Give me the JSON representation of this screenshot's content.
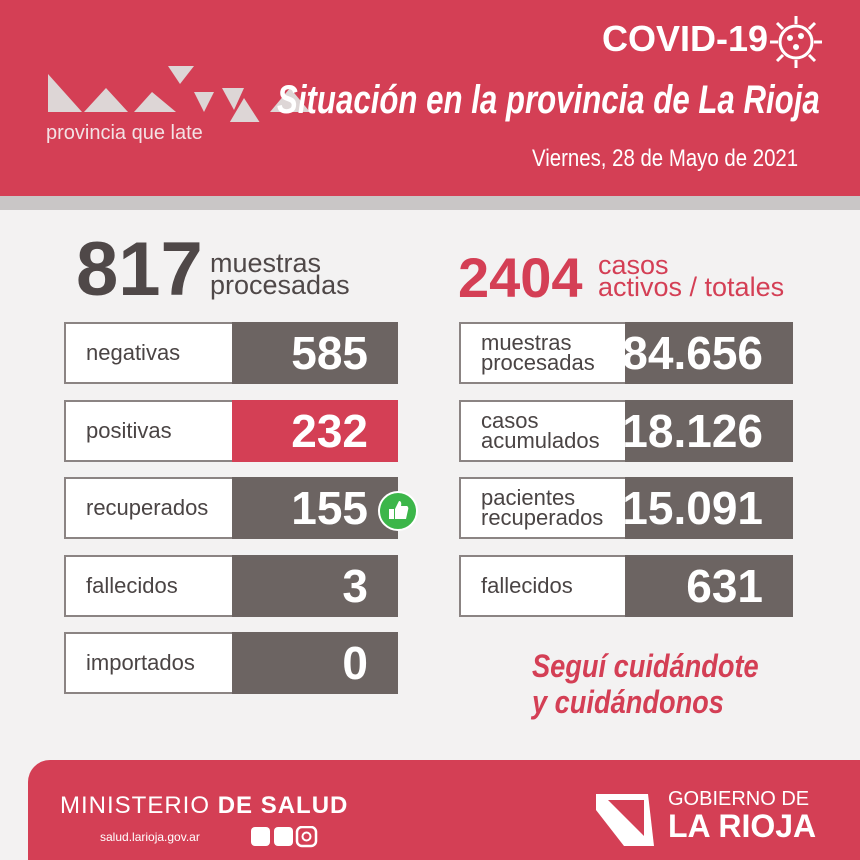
{
  "header": {
    "logo_tagline": "provincia que late",
    "title": "COVID-19",
    "subtitle": "Situación en la provincia de La Rioja",
    "date": "Viernes,  28 de Mayo de 2021"
  },
  "left": {
    "total": "817",
    "label": [
      "muestras",
      "procesadas"
    ],
    "rows": [
      {
        "label": [
          "negativas"
        ],
        "value": "585"
      },
      {
        "label": [
          "positivas"
        ],
        "value": "232",
        "highlight": true
      },
      {
        "label": [
          "recuperados"
        ],
        "value": "155",
        "icon": true
      },
      {
        "label": [
          "fallecidos"
        ],
        "value": "3"
      },
      {
        "label": [
          "importados"
        ],
        "value": "0"
      }
    ]
  },
  "right": {
    "total": "2404",
    "label": [
      "casos",
      "activos / totales"
    ],
    "rows": [
      {
        "label": [
          "muestras",
          "procesadas"
        ],
        "value": "84.656"
      },
      {
        "label": [
          "casos",
          "acumulados"
        ],
        "value": "18.126"
      },
      {
        "label": [
          "pacientes",
          "recuperados"
        ],
        "value": "15.091"
      },
      {
        "label": [
          "fallecidos"
        ],
        "value": "631"
      }
    ]
  },
  "slogan": [
    "Seguí cuidándote",
    "y cuidándonos"
  ],
  "footer": {
    "ministry": "MINISTERIO",
    "ministry_bold": "DE SALUD",
    "website": "salud.larioja.gov.ar",
    "gov_top": "GOBIERNO DE",
    "gov_bottom": "LA RIOJA"
  }
}
